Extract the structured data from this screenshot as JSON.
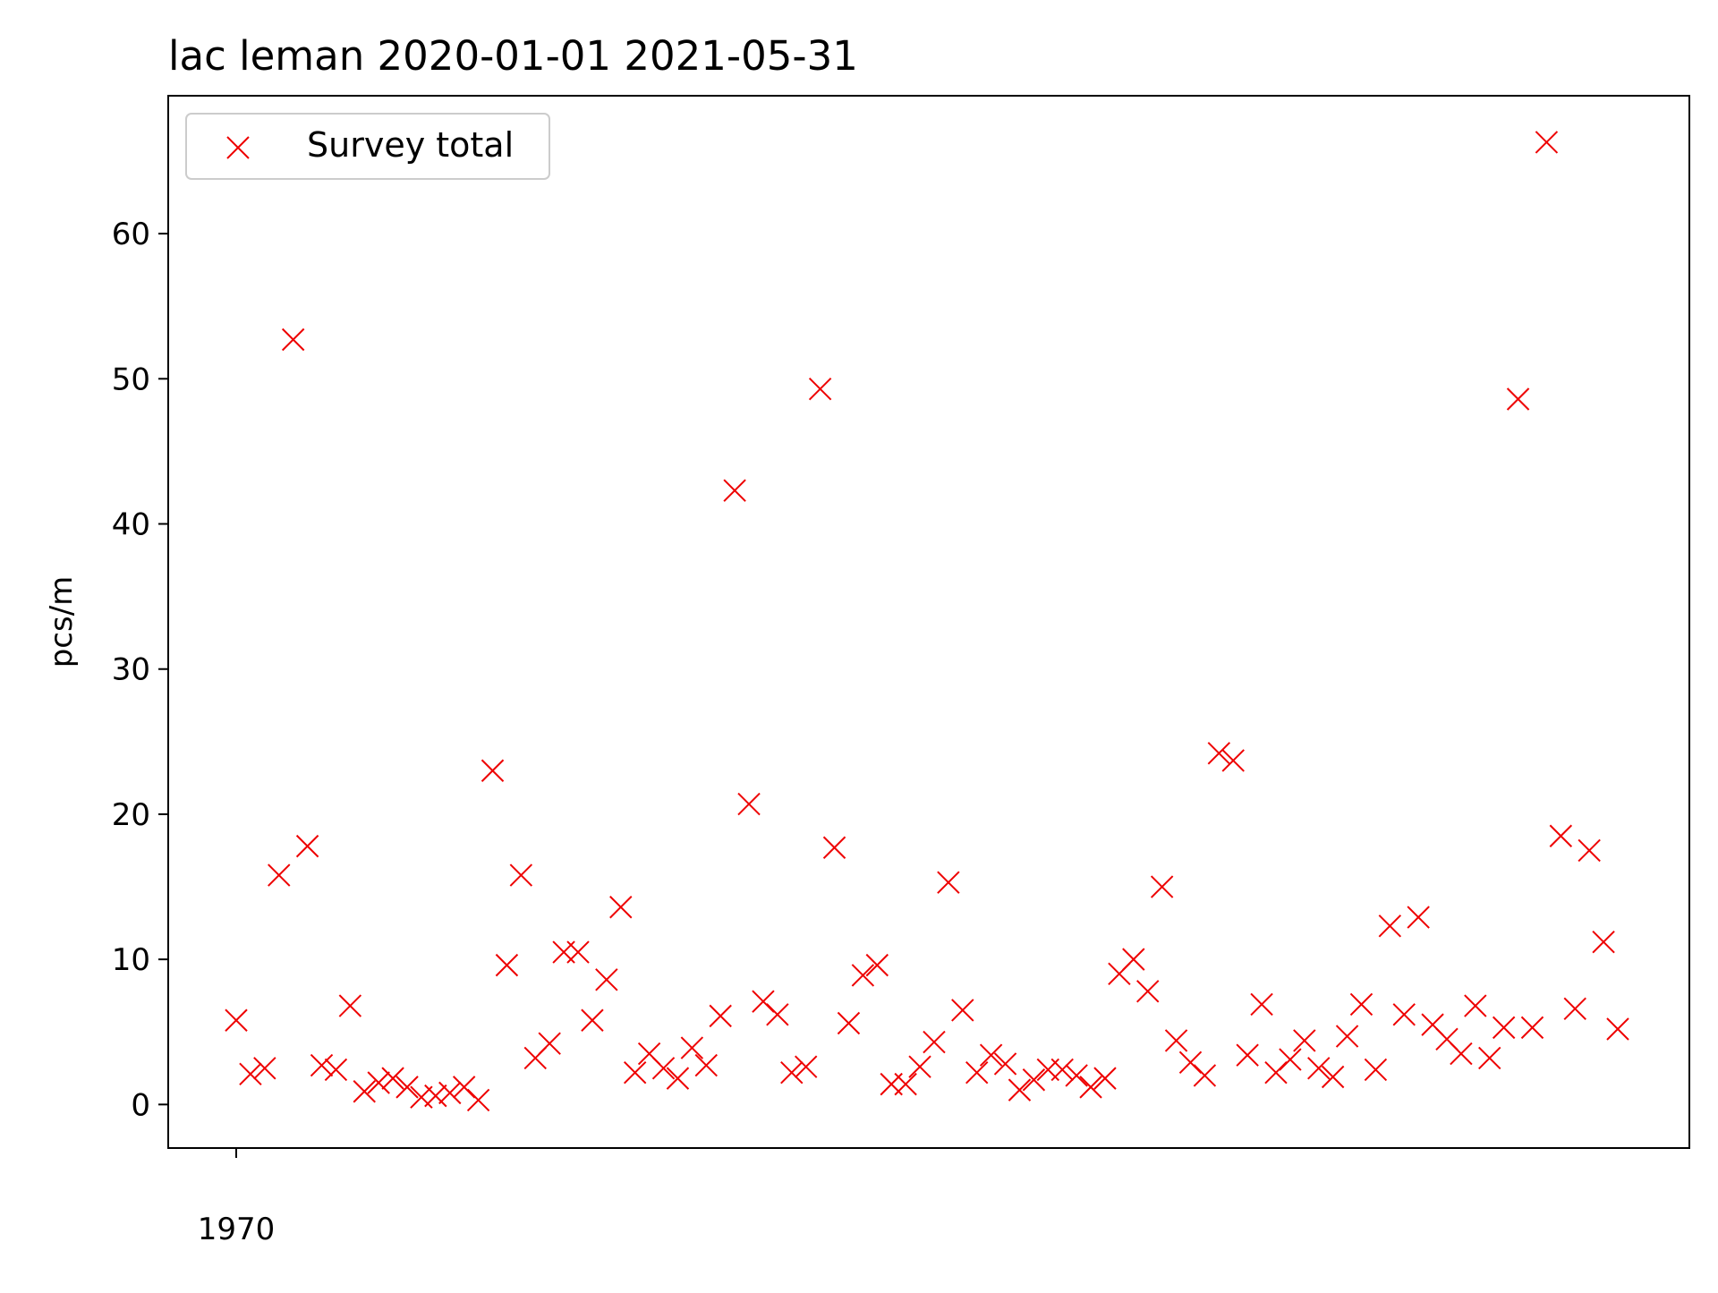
{
  "chart_data": {
    "type": "scatter",
    "title": "lac leman 2020-01-01 2021-05-31",
    "xlabel": "",
    "ylabel": "pcs/m",
    "ylim": [
      -3,
      69.5
    ],
    "y_ticks": [
      0,
      10,
      20,
      30,
      40,
      50,
      60
    ],
    "x_tick_labels": [
      "1970"
    ],
    "grid": false,
    "legend_position": "upper-left",
    "series": [
      {
        "name": "Survey total",
        "color": "#ee0000",
        "marker": "x",
        "values": [
          5.8,
          2.1,
          2.5,
          15.8,
          52.7,
          17.8,
          2.7,
          2.4,
          6.8,
          0.9,
          1.5,
          1.8,
          1.2,
          0.5,
          0.6,
          0.8,
          1.2,
          0.3,
          23.0,
          9.6,
          15.8,
          3.2,
          4.2,
          10.5,
          10.5,
          5.8,
          8.6,
          13.6,
          2.2,
          3.5,
          2.5,
          1.8,
          3.9,
          2.7,
          6.1,
          42.3,
          20.7,
          7.1,
          6.2,
          2.2,
          2.6,
          49.3,
          17.7,
          5.6,
          8.9,
          9.6,
          1.4,
          1.4,
          2.6,
          4.3,
          15.3,
          6.5,
          2.2,
          3.4,
          2.8,
          1.0,
          1.7,
          2.4,
          2.4,
          2.0,
          1.2,
          1.8,
          9.0,
          10.0,
          7.8,
          15.0,
          4.4,
          2.9,
          2.0,
          24.2,
          23.7,
          3.4,
          6.9,
          2.2,
          3.1,
          4.4,
          2.5,
          1.9,
          4.7,
          6.9,
          2.4,
          12.3,
          6.2,
          12.9,
          5.5,
          4.5,
          3.5,
          6.8,
          3.2,
          5.3,
          48.6,
          5.3,
          66.3,
          18.5,
          6.6,
          17.5,
          11.2,
          5.2
        ]
      }
    ]
  }
}
